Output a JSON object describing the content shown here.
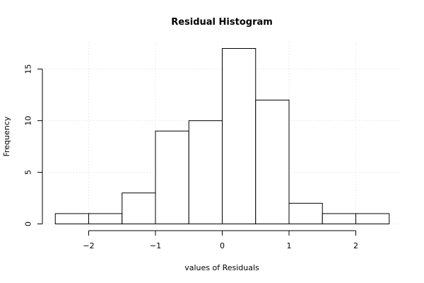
{
  "chart_data": {
    "type": "bar",
    "title": "Residual Histogram",
    "xlabel": "values of Residuals",
    "ylabel": "Frequency",
    "bin_edges": [
      -2.5,
      -2.0,
      -1.5,
      -1.0,
      -0.5,
      0.0,
      0.5,
      1.0,
      1.5,
      2.0,
      2.5
    ],
    "values": [
      1,
      1,
      3,
      9,
      10,
      17,
      12,
      2,
      1,
      1
    ],
    "xlim": [
      -2.5,
      2.5
    ],
    "ylim": [
      0,
      17
    ],
    "x_ticks": [
      -2,
      -1,
      0,
      1,
      2
    ],
    "x_tick_labels": [
      "−2",
      "−1",
      "0",
      "1",
      "2"
    ],
    "y_ticks": [
      0,
      5,
      10,
      15
    ],
    "y_tick_labels": [
      "0",
      "5",
      "10",
      "15"
    ],
    "grid": true,
    "grid_color": "#dcdcdc",
    "bar_fill": "#ffffff",
    "bar_stroke": "#000000"
  }
}
